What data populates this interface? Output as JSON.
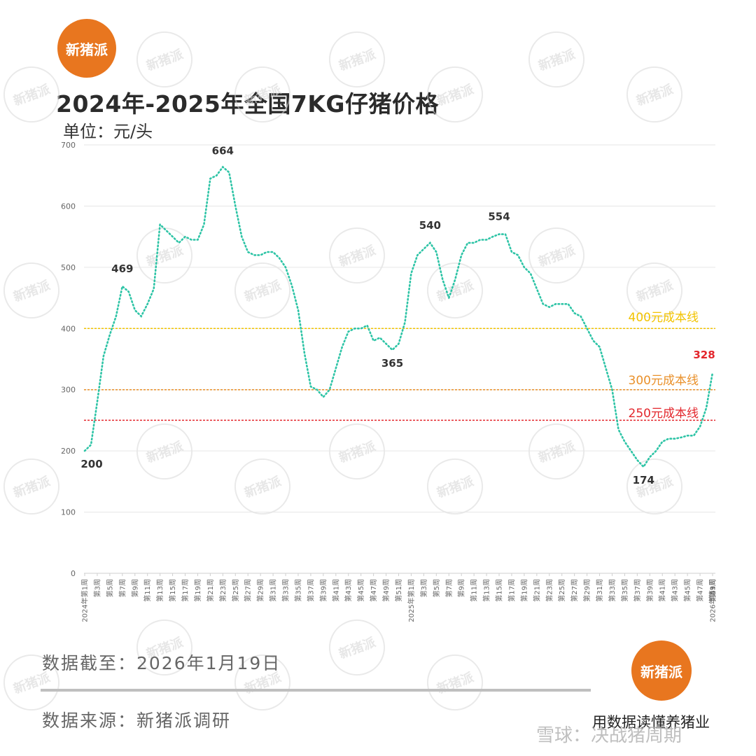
{
  "logo_text": "新猪派",
  "title": "2024年-2025年全国7KG仔猪价格",
  "unit": "单位：元/头",
  "footer": {
    "date": "数据截至：2026年1月19日",
    "source": "数据来源：新猪派调研",
    "slogan": "用数据读懂养猪业",
    "watermark": "雪球：决战猪周期"
  },
  "colors": {
    "series": "#2ec4a6",
    "ref_400": "#f2c300",
    "ref_300": "#e9902a",
    "ref_250": "#e3262c",
    "last_label": "#e3262c",
    "logo": "#e8761f"
  },
  "chart_data": {
    "type": "line",
    "title": "2024年-2025年全国7KG仔猪价格",
    "ylabel": "单位：元/头",
    "ylim": [
      0,
      700
    ],
    "yticks": [
      0,
      100,
      200,
      300,
      400,
      500,
      600,
      700
    ],
    "grid": true,
    "line_style": "dotted",
    "x_tick_labels": [
      "2024年第1周",
      "第3周",
      "第5周",
      "第7周",
      "第9周",
      "第11周",
      "第13周",
      "第15周",
      "第17周",
      "第19周",
      "第21周",
      "第23周",
      "第25周",
      "第27周",
      "第29周",
      "第31周",
      "第33周",
      "第35周",
      "第37周",
      "第39周",
      "第41周",
      "第43周",
      "第45周",
      "第47周",
      "第49周",
      "第51周",
      "2025年第1周",
      "第3周",
      "第5周",
      "第7周",
      "第9周",
      "第11周",
      "第13周",
      "第15周",
      "第17周",
      "第19周",
      "第21周",
      "第23周",
      "第25周",
      "第27周",
      "第29周",
      "第31周",
      "第33周",
      "第35周",
      "第37周",
      "第39周",
      "第41周",
      "第43周",
      "第45周",
      "第47周",
      "第49周",
      "第51周",
      "2026年第1周",
      "第3周"
    ],
    "series": [
      {
        "values": [
          200,
          210,
          280,
          355,
          390,
          420,
          469,
          460,
          430,
          420,
          440,
          465,
          570,
          560,
          550,
          540,
          550,
          545,
          545,
          570,
          645,
          650,
          664,
          655,
          600,
          550,
          525,
          520,
          520,
          525,
          525,
          515,
          500,
          470,
          430,
          360,
          305,
          300,
          288,
          300,
          335,
          370,
          395,
          400,
          400,
          405,
          380,
          385,
          375,
          365,
          375,
          410,
          490,
          520,
          530,
          540,
          525,
          480,
          450,
          480,
          520,
          540,
          540,
          545,
          545,
          550,
          554,
          554,
          525,
          520,
          500,
          490,
          465,
          440,
          435,
          440,
          440,
          440,
          425,
          420,
          400,
          380,
          370,
          335,
          300,
          235,
          215,
          200,
          185,
          174,
          190,
          200,
          215,
          220,
          220,
          222,
          225,
          225,
          240,
          270,
          328
        ],
        "labels": [
          {
            "index": 0,
            "text": "200"
          },
          {
            "index": 6,
            "text": "469"
          },
          {
            "index": 22,
            "text": "664"
          },
          {
            "index": 49,
            "text": "365"
          },
          {
            "index": 55,
            "text": "540"
          },
          {
            "index": 66,
            "text": "554"
          },
          {
            "index": 89,
            "text": "174"
          },
          {
            "index": 100,
            "text": "328"
          }
        ]
      }
    ],
    "reference_lines": [
      {
        "y": 400,
        "label": "400元成本线"
      },
      {
        "y": 300,
        "label": "300元成本线"
      },
      {
        "y": 250,
        "label": "250元成本线"
      }
    ]
  }
}
